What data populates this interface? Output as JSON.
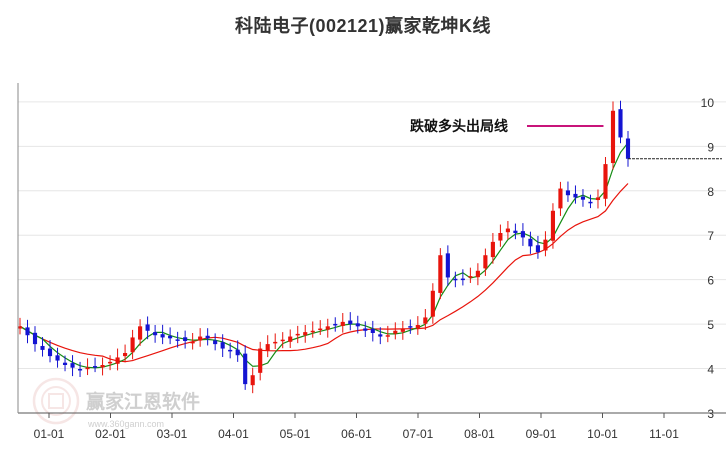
{
  "chart_data": {
    "type": "candlestick",
    "title": "科陆电子(002121)赢家乾坤K线",
    "ylim": [
      3,
      10.2
    ],
    "y_ticks": [
      "3",
      "4",
      "5",
      "6",
      "7",
      "8",
      "9",
      "10"
    ],
    "x_ticks": [
      "01-01",
      "02-01",
      "03-01",
      "04-01",
      "05-01",
      "06-01",
      "07-01",
      "08-01",
      "09-01",
      "10-01",
      "11-01"
    ],
    "grid": true,
    "annotation": {
      "text": "跌破多头出局线",
      "target_value": 9.2
    },
    "reference_line_value": 8.72,
    "watermark": {
      "brand": "赢家江恩软件",
      "url": "www.360gann.com"
    },
    "colors": {
      "up": "#e8140c",
      "down": "#1414d2",
      "short_ma": "#158c15",
      "long_ma": "#e8140c",
      "annotation": "#c8147a",
      "grid": "#e6e6e6"
    },
    "series": [
      {
        "kind": "price_close",
        "values": [
          4.95,
          4.75,
          4.55,
          4.42,
          4.28,
          4.18,
          4.08,
          4.02,
          3.98,
          4.02,
          4.05,
          4.08,
          4.15,
          4.25,
          4.35,
          4.7,
          4.95,
          4.85,
          4.75,
          4.7,
          4.68,
          4.65,
          4.62,
          4.6,
          4.72,
          4.68,
          4.55,
          4.45,
          4.4,
          4.3,
          3.65,
          3.85,
          4.45,
          4.55,
          4.6,
          4.65,
          4.72,
          4.78,
          4.82,
          4.85,
          4.9,
          4.95,
          5.0,
          5.05,
          5.0,
          4.95,
          4.85,
          4.8,
          4.72,
          4.75,
          4.85,
          4.9,
          4.95,
          4.98,
          5.15,
          5.75,
          6.55,
          6.05,
          6.0,
          6.02,
          6.08,
          6.2,
          6.55,
          6.85,
          7.05,
          7.15,
          7.05,
          6.95,
          6.75,
          6.62,
          6.9,
          7.55,
          8.05,
          7.9,
          7.85,
          7.8,
          7.75,
          7.85,
          8.6,
          9.8,
          9.2,
          8.72
        ]
      }
    ]
  }
}
